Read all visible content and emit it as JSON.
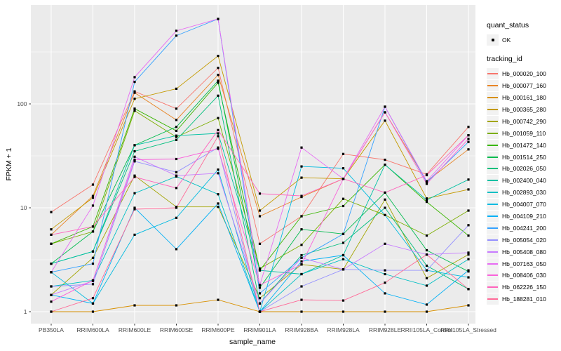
{
  "figure": {
    "panel_background": "#EBEBEB",
    "grid_color": "#FFFFFF",
    "tick_text_color": "#4D4D4D",
    "point_color": "#000000"
  },
  "axes": {
    "x_label": "sample_name",
    "y_label": "FPKM + 1",
    "y_ticks": [
      "1",
      "10",
      "100"
    ]
  },
  "legend": {
    "quant_status_title": "quant_status",
    "quant_status_items": [
      "OK"
    ],
    "tracking_id_title": "tracking_id"
  },
  "chart_data": {
    "type": "line",
    "title": "",
    "xlabel": "sample_name",
    "ylabel": "FPKM + 1",
    "legend_position": "right",
    "grid": true,
    "y_axis": {
      "scale": "log10",
      "ticks": [
        1,
        10,
        100
      ],
      "minor_ticks": [
        3.162,
        31.62,
        316.2
      ],
      "range_approx": [
        0.77,
        850
      ]
    },
    "x_categories": [
      "PB350LA",
      "RRIM600LA",
      "RRIM600LE",
      "RRIM600SE",
      "RRIM600PE",
      "RRIM901LA",
      "RRIM928BA",
      "RRIM928LA",
      "RRIM928LE",
      "RRII105LA_Control",
      "RRII105LA_Stressed"
    ],
    "quant_status": "OK",
    "series": [
      {
        "name": "Hb_000020_100",
        "color": "#F8766D",
        "values": [
          9.1,
          16.7,
          132,
          90,
          222,
          4.5,
          8.3,
          33,
          29,
          21,
          60
        ]
      },
      {
        "name": "Hb_000077_160",
        "color": "#E88526",
        "values": [
          5.5,
          13,
          128,
          70,
          190,
          8.3,
          12.7,
          19,
          83,
          18,
          36.5
        ]
      },
      {
        "name": "Hb_000161_180",
        "color": "#D89000",
        "values": [
          1.0,
          1.0,
          1.15,
          1.15,
          1.3,
          1.0,
          1.0,
          1.0,
          1.0,
          1.0,
          1.15
        ]
      },
      {
        "name": "Hb_000365_280",
        "color": "#C49A00",
        "values": [
          6.2,
          12.5,
          112,
          140,
          290,
          9.4,
          19.5,
          19,
          69,
          12.3,
          15
        ]
      },
      {
        "name": "Hb_000742_290",
        "color": "#A3A500",
        "values": [
          1.45,
          3.3,
          20.4,
          10.2,
          10.2,
          1.35,
          2.85,
          2.55,
          12,
          2.1,
          3.55
        ]
      },
      {
        "name": "Hb_001059_110",
        "color": "#7CAE00",
        "values": [
          4.5,
          5.9,
          86,
          48,
          73,
          2.6,
          4.4,
          12.2,
          8.5,
          5.4,
          9.4
        ]
      },
      {
        "name": "Hb_001472_140",
        "color": "#39B600",
        "values": [
          4.5,
          6.6,
          90,
          55,
          160,
          2.5,
          8.3,
          10.4,
          26,
          11.4,
          5.4
        ]
      },
      {
        "name": "Hb_001514_250",
        "color": "#00BB4E",
        "values": [
          2.9,
          5.9,
          40,
          60,
          167,
          1.7,
          6.2,
          5.6,
          14,
          3.9,
          2.44
        ]
      },
      {
        "name": "Hb_002026_050",
        "color": "#00BF7D",
        "values": [
          2.9,
          3.8,
          35,
          45,
          120,
          1.2,
          3.5,
          4.6,
          10,
          2.77,
          1.65
        ]
      },
      {
        "name": "Hb_002400_040",
        "color": "#00C1A3",
        "values": [
          2.9,
          3.8,
          40,
          49.5,
          52,
          2.5,
          2.3,
          3.5,
          26,
          11.9,
          18.7
        ]
      },
      {
        "name": "Hb_002893_030",
        "color": "#00BFC4",
        "values": [
          1.75,
          2.0,
          13.8,
          20,
          13.5,
          1.0,
          2.3,
          3.2,
          2.3,
          1.78,
          3.2
        ]
      },
      {
        "name": "Hb_004007_070",
        "color": "#00BAE0",
        "values": [
          2.4,
          1.2,
          5.5,
          8,
          23.3,
          1.0,
          25,
          24,
          8.5,
          2.5,
          2.14
        ]
      },
      {
        "name": "Hb_004109_210",
        "color": "#00B0F6",
        "values": [
          1.45,
          1.2,
          10,
          4,
          11,
          1.0,
          3.05,
          3.5,
          1.5,
          1.17,
          2.5
        ]
      },
      {
        "name": "Hb_004241_200",
        "color": "#35A2FF",
        "values": [
          2.4,
          2.9,
          163,
          454,
          657,
          1.5,
          3.3,
          5.6,
          94,
          17.6,
          43
        ]
      },
      {
        "name": "Hb_005054_020",
        "color": "#9590FF",
        "values": [
          1.75,
          1.84,
          28,
          22,
          38,
          1.0,
          1.75,
          2.55,
          2.5,
          2.5,
          6.8
        ]
      },
      {
        "name": "Hb_005408_080",
        "color": "#C77CFF",
        "values": [
          1.45,
          1.97,
          31,
          20.4,
          21.5,
          1.2,
          3.3,
          2.55,
          4.5,
          3.55,
          3.7
        ]
      },
      {
        "name": "Hb_007163_050",
        "color": "#E76BF3",
        "values": [
          2.4,
          10.5,
          181,
          505,
          657,
          1.8,
          38,
          19,
          94,
          18,
          50
        ]
      },
      {
        "name": "Hb_008406_030",
        "color": "#FA62DB",
        "values": [
          1.25,
          2.0,
          29,
          29.5,
          37,
          1.8,
          2.85,
          19,
          83,
          17,
          46
        ]
      },
      {
        "name": "Hb_062226_150",
        "color": "#FF62BC",
        "values": [
          5.5,
          6.6,
          19.8,
          15.5,
          56,
          13.7,
          13,
          19,
          14,
          20.6,
          50
        ]
      },
      {
        "name": "Hb_188281_010",
        "color": "#FF6A98",
        "values": [
          1.0,
          1.35,
          9.7,
          10,
          49,
          1.0,
          1.3,
          1.28,
          1.9,
          3.55,
          1.65
        ]
      }
    ]
  }
}
